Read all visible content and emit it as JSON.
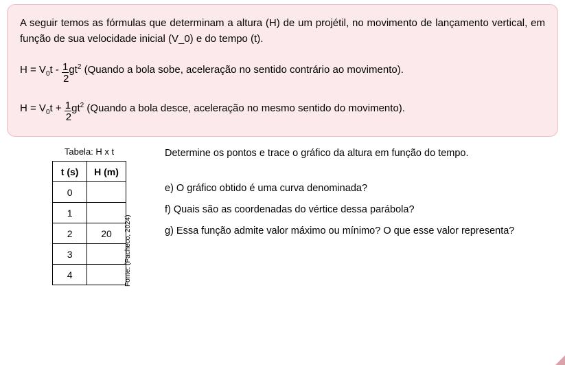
{
  "pinkBox": {
    "intro": "A seguir temos as fórmulas que determinam a altura (H) de um projétil, no movimento de lançamento vertical, em função de sua velocidade inicial (V_0) e do tempo (t).",
    "formula1_prefix": "H = V",
    "formula1_sub": "0",
    "formula1_mid1": "t - ",
    "formula1_frac_num": "1",
    "formula1_frac_den": "2",
    "formula1_mid2": "gt",
    "formula1_sup": "2",
    "formula1_tail": " (Quando a bola sobe, aceleração no sentido contrário ao movimento).",
    "formula2_prefix": "H = V",
    "formula2_sub": "0",
    "formula2_mid1": "t + ",
    "formula2_frac_num": "1",
    "formula2_frac_den": "2",
    "formula2_mid2": "gt",
    "formula2_sup": "2",
    "formula2_tail": " (Quando a bola desce, aceleração no mesmo sentido do movimento)."
  },
  "table": {
    "caption": "Tabela: H x t",
    "col1": "t (s)",
    "col2": "H (m)",
    "rows": [
      {
        "t": "0",
        "h": ""
      },
      {
        "t": "1",
        "h": ""
      },
      {
        "t": "2",
        "h": "20"
      },
      {
        "t": "3",
        "h": ""
      },
      {
        "t": "4",
        "h": ""
      }
    ],
    "source": "Fonte: (Pacheco, 2024)"
  },
  "right": {
    "instruction": "Determine os pontos e trace o gráfico da altura em função do tempo.",
    "q_e": "e) O gráfico obtido é uma curva denominada?",
    "q_f": "f) Quais são as coordenadas do vértice dessa parábola?",
    "q_g": "g) Essa função admite valor máximo ou mínimo? O que esse valor representa?"
  },
  "style": {
    "pink_bg": "#fbe9eb",
    "pink_border": "#e9c0c6",
    "text_color": "#000000",
    "table_border": "#000000",
    "corner_color": "#d9a2a8"
  }
}
